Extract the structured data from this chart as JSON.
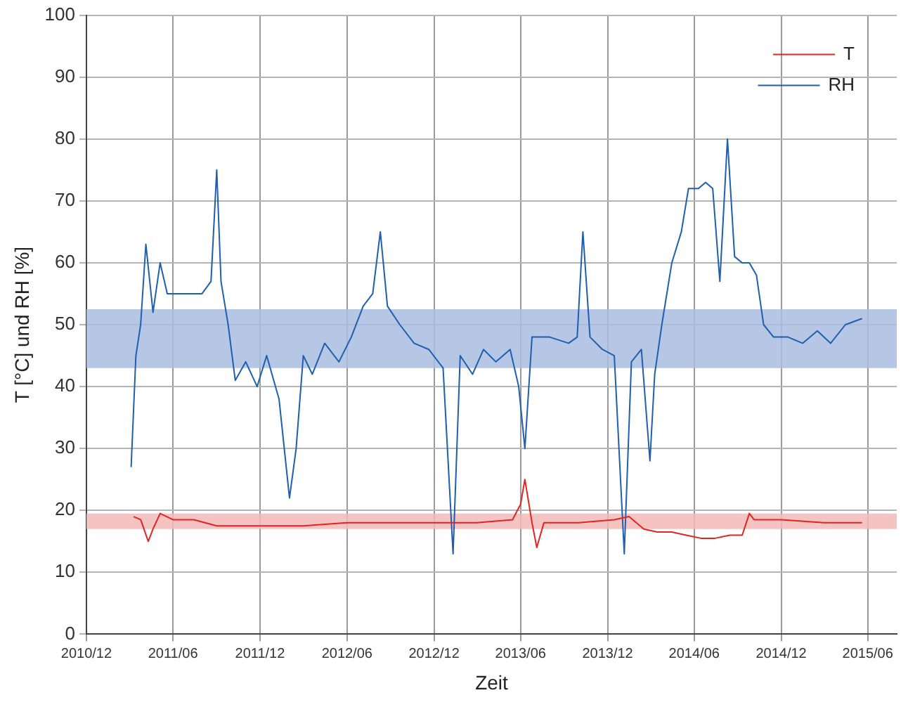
{
  "chart_data": {
    "type": "line",
    "xlabel": "Zeit",
    "ylabel": "T [°C] und RH [%]",
    "xlim": [
      "2010-12",
      "2015-08"
    ],
    "xticks": [
      {
        "value": "2010-12",
        "label": "2010/12"
      },
      {
        "value": "2011-06",
        "label": "2011/06"
      },
      {
        "value": "2011-12",
        "label": "2011/12"
      },
      {
        "value": "2012-06",
        "label": "2012/06"
      },
      {
        "value": "2012-12",
        "label": "2012/12"
      },
      {
        "value": "2013-06",
        "label": "2013/06"
      },
      {
        "value": "2013-12",
        "label": "2013/12"
      },
      {
        "value": "2014-06",
        "label": "2014/06"
      },
      {
        "value": "2014-12",
        "label": "2014/12"
      },
      {
        "value": "2015-06",
        "label": "2015/06"
      }
    ],
    "ylim": [
      0,
      100
    ],
    "yticks": [
      0,
      10,
      20,
      30,
      40,
      50,
      60,
      70,
      80,
      90,
      100
    ],
    "grid": true,
    "legend": "top right",
    "marker": "none",
    "line_style": "solid",
    "bands": [
      {
        "axis": "y",
        "from": 43,
        "to": 52.5,
        "color": "#a9bde0"
      },
      {
        "axis": "y",
        "from": 17,
        "to": 19.5,
        "color": "#f5b8b8"
      }
    ],
    "series": [
      {
        "name": "T",
        "color": "#e32420",
        "x": [
          "2011-03-10",
          "2011-03-25",
          "2011-04-10",
          "2011-04-20",
          "2011-05-05",
          "2011-06-01",
          "2011-07-15",
          "2011-09-01",
          "2011-10-01",
          "2011-12-01",
          "2012-03-01",
          "2012-06-01",
          "2012-09-01",
          "2012-12-01",
          "2013-03-01",
          "2013-05-15",
          "2013-06-01",
          "2013-06-10",
          "2013-06-25",
          "2013-07-05",
          "2013-07-20",
          "2013-10-01",
          "2013-12-15",
          "2014-01-15",
          "2014-02-15",
          "2014-03-15",
          "2014-04-15",
          "2014-05-15",
          "2014-06-15",
          "2014-07-15",
          "2014-08-15",
          "2014-09-10",
          "2014-09-25",
          "2014-10-05",
          "2014-12-01",
          "2015-03-01",
          "2015-05-20"
        ],
        "values": [
          19,
          18.5,
          15,
          17,
          19.5,
          18.5,
          18.5,
          17.5,
          17.5,
          17.5,
          17.5,
          18,
          18,
          18,
          18,
          18.5,
          21,
          25,
          18,
          14,
          18,
          18,
          18.5,
          19,
          17,
          16.5,
          16.5,
          16,
          15.5,
          15.5,
          16,
          16,
          19.5,
          18.5,
          18.5,
          18,
          18
        ]
      },
      {
        "name": "RH",
        "color": "#1f5fb0",
        "x": [
          "2011-03-05",
          "2011-03-15",
          "2011-03-25",
          "2011-04-05",
          "2011-04-20",
          "2011-05-05",
          "2011-05-20",
          "2011-06-05",
          "2011-07-01",
          "2011-08-01",
          "2011-08-20",
          "2011-09-01",
          "2011-09-10",
          "2011-09-25",
          "2011-10-10",
          "2011-11-01",
          "2011-11-25",
          "2011-12-15",
          "2012-01-10",
          "2012-02-01",
          "2012-02-15",
          "2012-03-01",
          "2012-03-20",
          "2012-04-15",
          "2012-05-15",
          "2012-06-10",
          "2012-07-05",
          "2012-07-25",
          "2012-08-10",
          "2012-08-25",
          "2012-09-20",
          "2012-10-20",
          "2012-11-20",
          "2012-12-20",
          "2013-01-10",
          "2013-01-25",
          "2013-02-20",
          "2013-03-15",
          "2013-04-10",
          "2013-05-10",
          "2013-05-28",
          "2013-06-10",
          "2013-06-25",
          "2013-08-01",
          "2013-09-10",
          "2013-09-28",
          "2013-10-10",
          "2013-10-25",
          "2013-11-20",
          "2013-12-15",
          "2014-01-05",
          "2014-01-20",
          "2014-02-10",
          "2014-02-28",
          "2014-03-10",
          "2014-03-25",
          "2014-04-15",
          "2014-05-05",
          "2014-05-20",
          "2014-06-10",
          "2014-06-25",
          "2014-07-10",
          "2014-07-25",
          "2014-08-10",
          "2014-08-25",
          "2014-09-10",
          "2014-09-25",
          "2014-10-10",
          "2014-10-25",
          "2014-11-15",
          "2014-12-15",
          "2015-01-15",
          "2015-02-15",
          "2015-03-15",
          "2015-04-15",
          "2015-05-20"
        ],
        "values": [
          27,
          45,
          50,
          63,
          52,
          60,
          55,
          55,
          55,
          55,
          57,
          75,
          57,
          50,
          41,
          44,
          40,
          45,
          38,
          22,
          30,
          45,
          42,
          47,
          44,
          48,
          53,
          55,
          65,
          53,
          50,
          47,
          46,
          43,
          13,
          45,
          42,
          46,
          44,
          46,
          40,
          30,
          48,
          48,
          47,
          48,
          65,
          48,
          46,
          45,
          13,
          44,
          46,
          28,
          42,
          50,
          60,
          65,
          72,
          72,
          73,
          72,
          57,
          80,
          61,
          60,
          60,
          58,
          50,
          48,
          48,
          47,
          49,
          47,
          50,
          51
        ]
      }
    ]
  }
}
